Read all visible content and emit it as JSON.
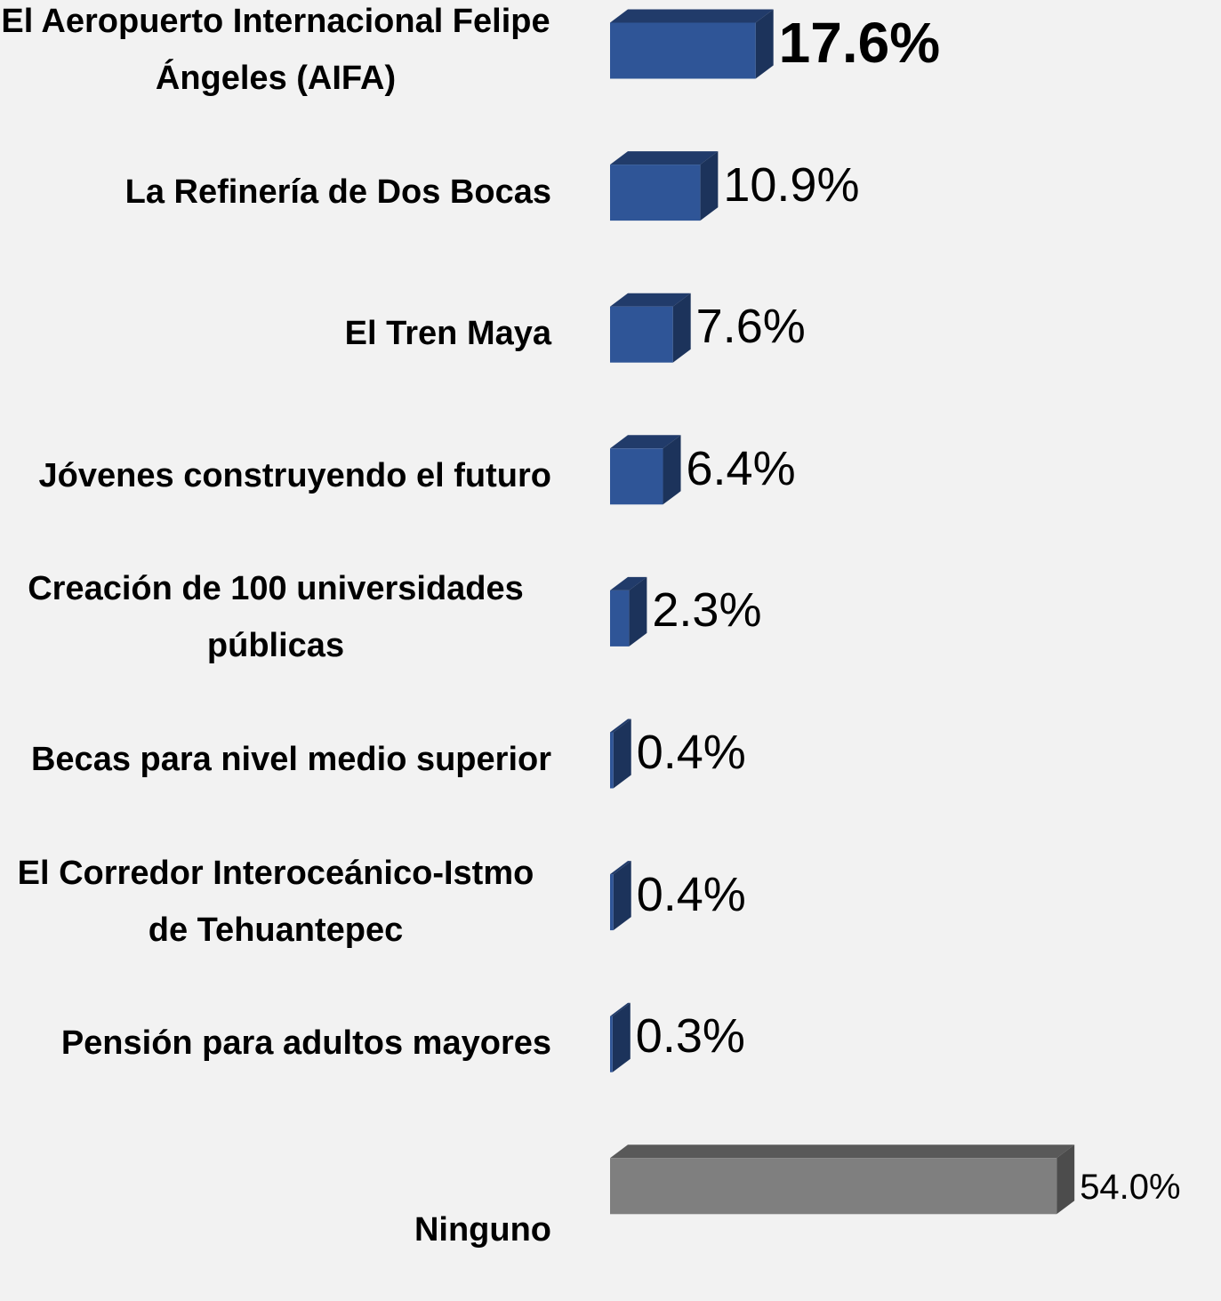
{
  "chart_data": {
    "type": "bar",
    "orientation": "horizontal",
    "categories": [
      "El Aeropuerto Internacional Felipe Ángeles (AIFA)",
      "La Refinería de Dos Bocas",
      "El Tren Maya",
      "Jóvenes construyendo el futuro",
      "Creación de 100 universidades públicas",
      "Becas para nivel medio superior",
      "El Corredor Interoceánico-Istmo de Tehuantepec",
      "Pensión para adultos mayores",
      "Ninguno"
    ],
    "values": [
      17.6,
      10.9,
      7.6,
      6.4,
      2.3,
      0.4,
      0.4,
      0.3,
      54.0
    ],
    "value_labels": [
      "17.6%",
      "10.9%",
      "7.6%",
      "6.4%",
      "2.3%",
      "0.4%",
      "0.4%",
      "0.3%",
      "54.0%"
    ],
    "colors": [
      "#2f5597",
      "#2f5597",
      "#2f5597",
      "#2f5597",
      "#2f5597",
      "#2f5597",
      "#2f5597",
      "#2f5597",
      "#7f7f7f"
    ]
  }
}
